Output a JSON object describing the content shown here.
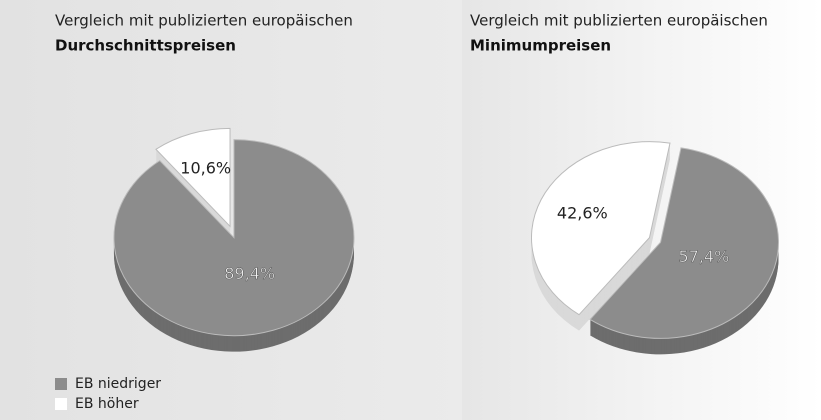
{
  "legend": {
    "categories": [
      "EB niedriger",
      "EB höher"
    ],
    "colors": [
      "#8c8c8c",
      "#ffffff"
    ]
  },
  "chart_data": [
    {
      "type": "pie",
      "title": "Vergleich mit publizierten europäischen",
      "subtitle": "Durchschnittspreisen",
      "values": [
        89.4,
        10.6
      ],
      "value_labels": [
        "89,4%",
        "10,6%"
      ]
    },
    {
      "type": "pie",
      "title": "Vergleich mit publizierten europäischen",
      "subtitle": "Minimumpreisen",
      "values": [
        57.4,
        42.6
      ],
      "value_labels": [
        "57,4%",
        "42,6%"
      ]
    }
  ]
}
